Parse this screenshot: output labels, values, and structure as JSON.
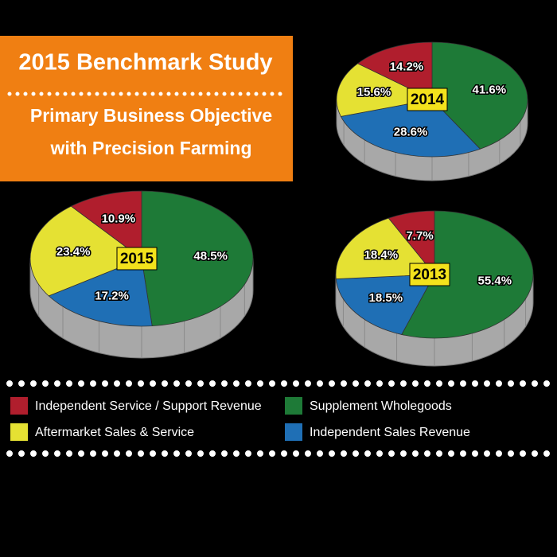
{
  "header": {
    "title": "2015 Benchmark Study",
    "subtitle": [
      "Primary Business Objective",
      "with Precision Farming"
    ]
  },
  "legend": {
    "entries": [
      {
        "name": "Supplement Wholegoods",
        "color": "#1e7a37"
      },
      {
        "name": "Independent Sales Revenue",
        "color": "#1f6fb5"
      },
      {
        "name": "Aftermarket Sales & Service",
        "color": "#e5e133"
      },
      {
        "name": "Independent Service / Support Revenue",
        "color": "#b01e2d"
      }
    ]
  },
  "chart_data": [
    {
      "type": "pie",
      "label": "2015",
      "values": [
        48.5,
        17.2,
        23.4,
        10.9
      ],
      "value_labels": [
        "48.5%",
        "17.2%",
        "23.4%",
        "10.9%"
      ]
    },
    {
      "type": "pie",
      "label": "2014",
      "values": [
        41.6,
        28.6,
        15.6,
        14.2
      ],
      "value_labels": [
        "41.6%",
        "28.6%",
        "15.6%",
        "14.2%"
      ]
    },
    {
      "type": "pie",
      "label": "2013",
      "values": [
        55.4,
        18.5,
        18.4,
        7.7
      ],
      "value_labels": [
        "55.4%",
        "18.5%",
        "18.4%",
        "7.7%"
      ]
    }
  ]
}
